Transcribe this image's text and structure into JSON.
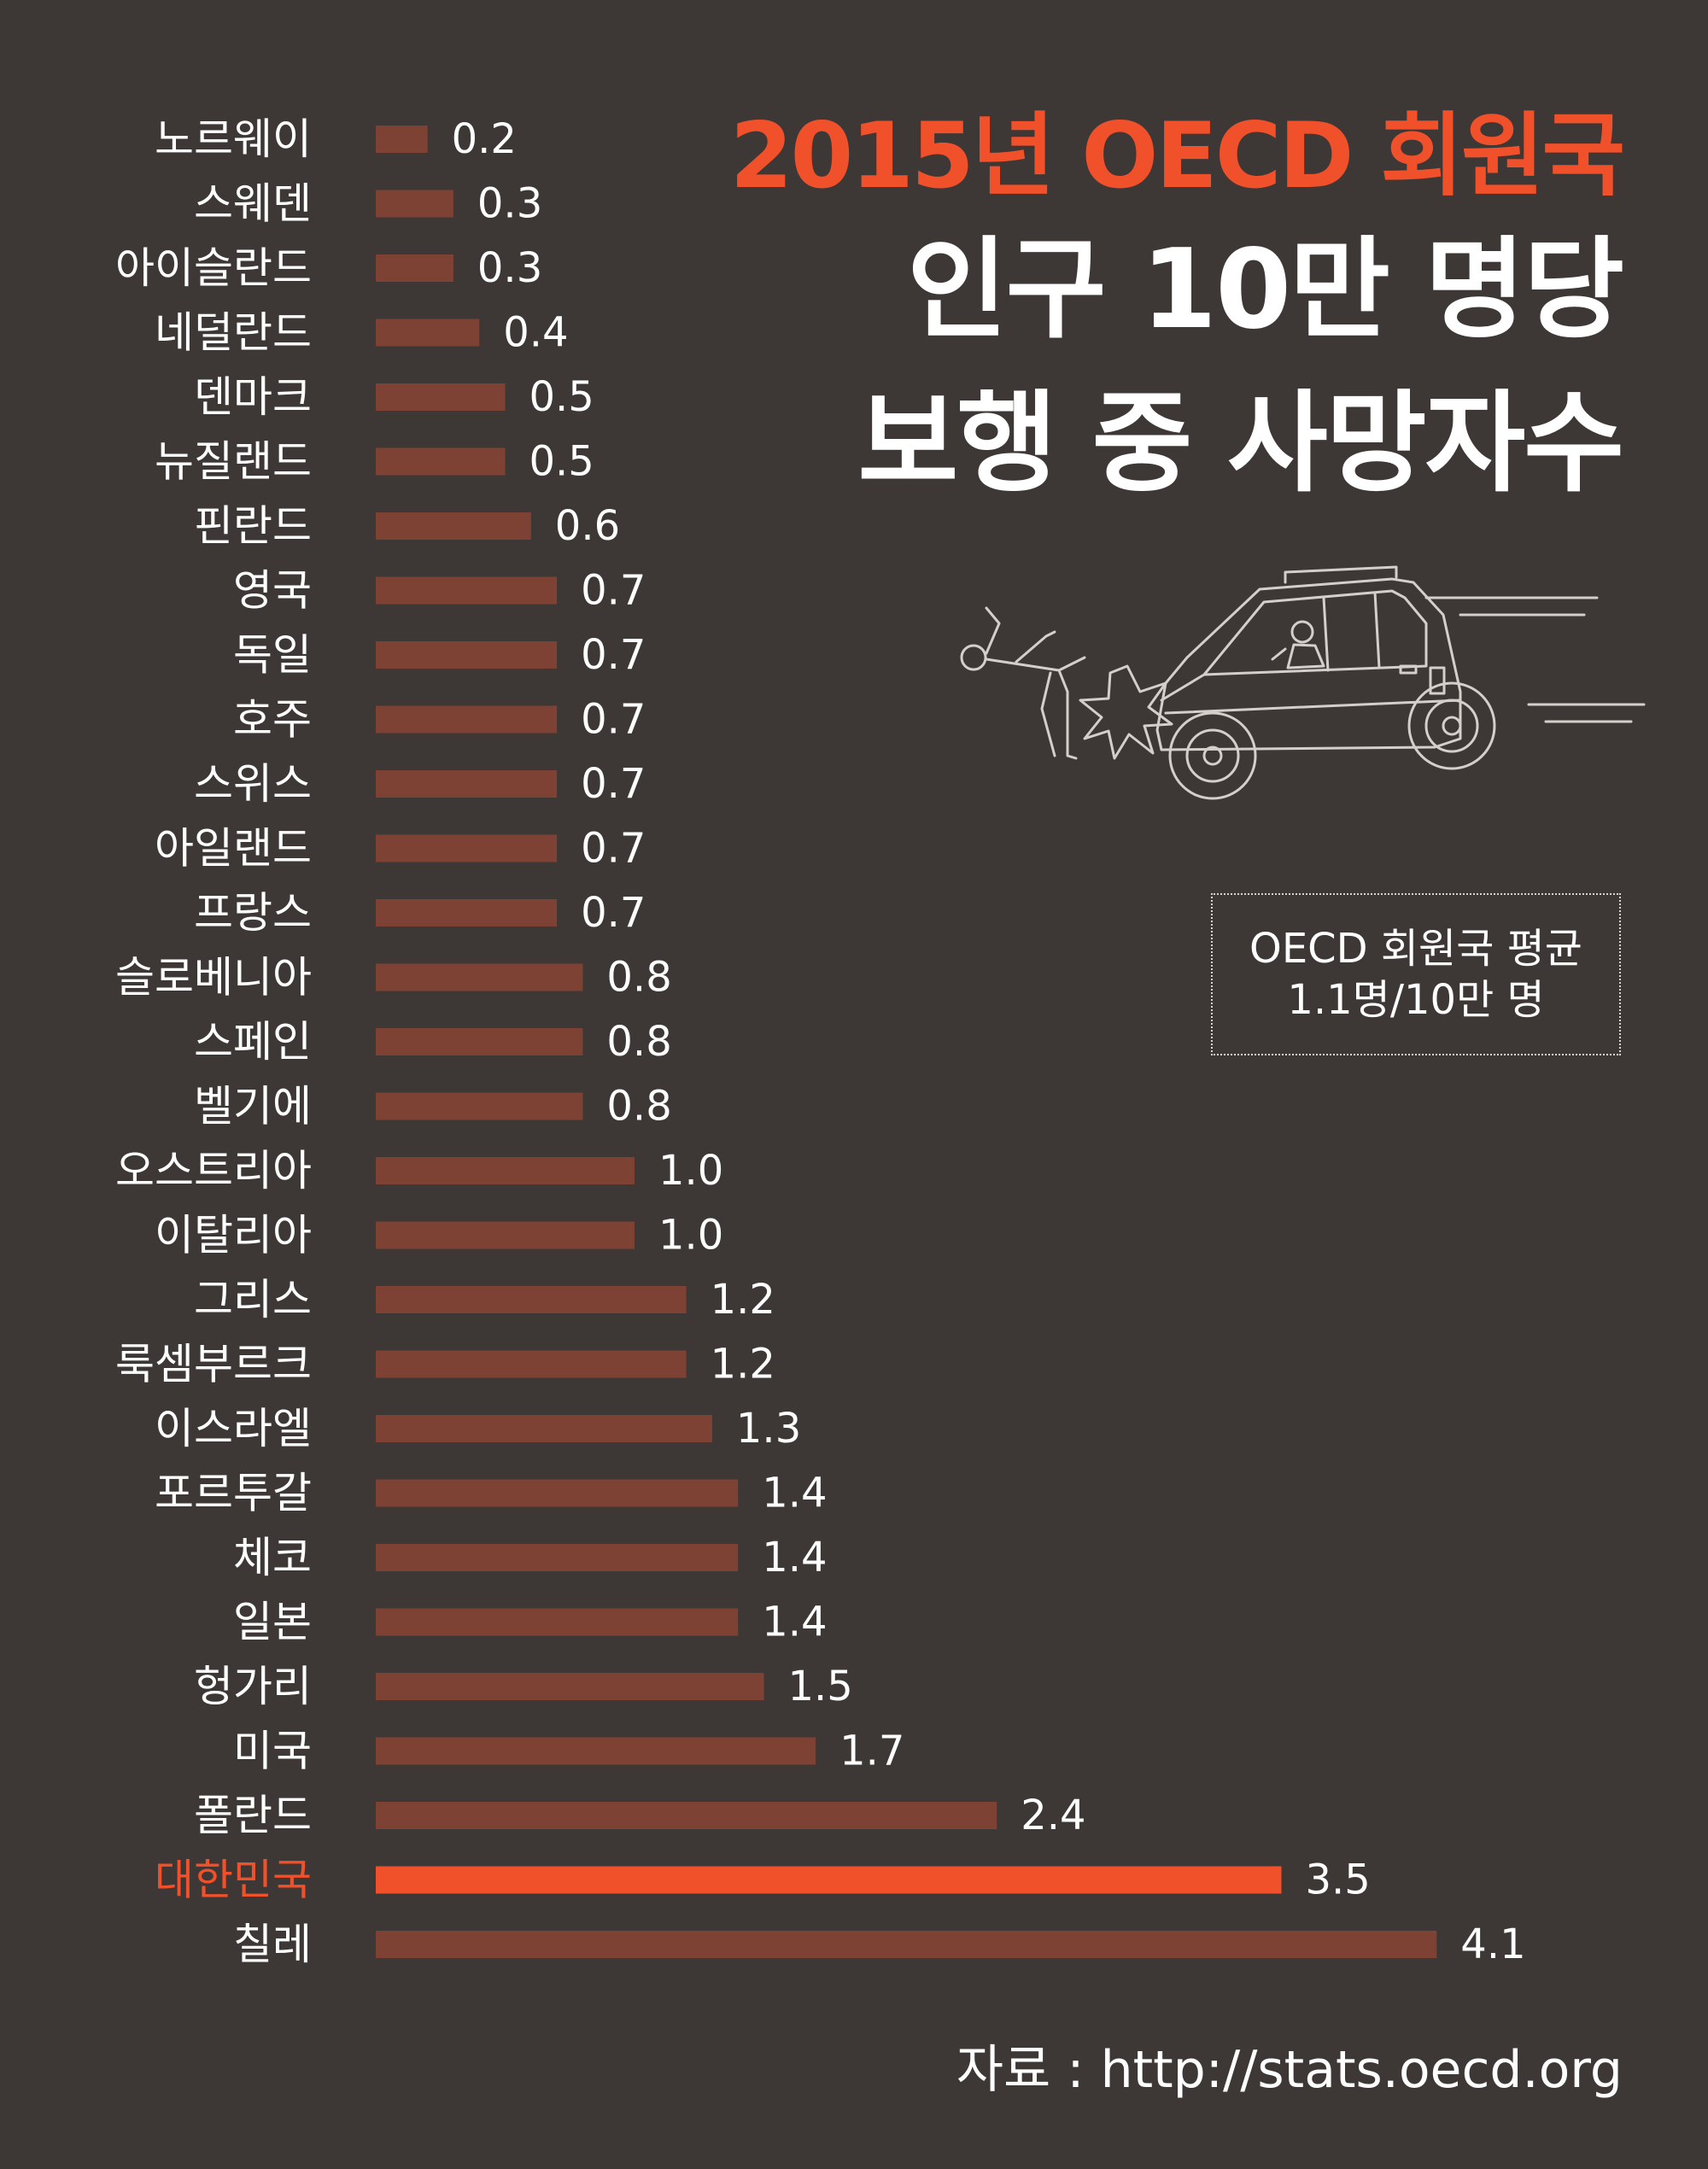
{
  "title": {
    "line1": "2015년 OECD 회원국",
    "line2": "인구 10만 명당",
    "line3": "보행 중 사망자수"
  },
  "average_box": {
    "line1": "OECD 회원국 평균",
    "line2": "1.1명/10만 명"
  },
  "source": "자료 : http://stats.oecd.org",
  "colors": {
    "background": "#3d3836",
    "bar": "#7e4234",
    "highlight": "#f0502a",
    "label": "#ffffff"
  },
  "illustration": "pedestrian-hit-by-car-illustration",
  "chart_data": {
    "type": "bar",
    "orientation": "horizontal",
    "categories": [
      "노르웨이",
      "스웨덴",
      "아이슬란드",
      "네덜란드",
      "덴마크",
      "뉴질랜드",
      "핀란드",
      "영국",
      "독일",
      "호주",
      "스위스",
      "아일랜드",
      "프랑스",
      "슬로베니아",
      "스페인",
      "벨기에",
      "오스트리아",
      "이탈리아",
      "그리스",
      "룩셈부르크",
      "이스라엘",
      "포르투갈",
      "체코",
      "일본",
      "헝가리",
      "미국",
      "폴란드",
      "대한민국",
      "칠레"
    ],
    "value_labels": [
      "0.2",
      "0.3",
      "0.3",
      "0.4",
      "0.5",
      "0.5",
      "0.6",
      "0.7",
      "0.7",
      "0.7",
      "0.7",
      "0.7",
      "0.7",
      "0.8",
      "0.8",
      "0.8",
      "1.0",
      "1.0",
      "1.2",
      "1.2",
      "1.3",
      "1.4",
      "1.4",
      "1.4",
      "1.5",
      "1.7",
      "2.4",
      "3.5",
      "4.1"
    ],
    "values": [
      0.2,
      0.3,
      0.3,
      0.4,
      0.5,
      0.5,
      0.6,
      0.7,
      0.7,
      0.7,
      0.7,
      0.7,
      0.7,
      0.8,
      0.8,
      0.8,
      1.0,
      1.0,
      1.2,
      1.2,
      1.3,
      1.4,
      1.4,
      1.4,
      1.5,
      1.7,
      2.4,
      3.5,
      4.1
    ],
    "highlight": "대한민국",
    "xlim": [
      0,
      4.1
    ],
    "grid": false,
    "legend": false
  }
}
